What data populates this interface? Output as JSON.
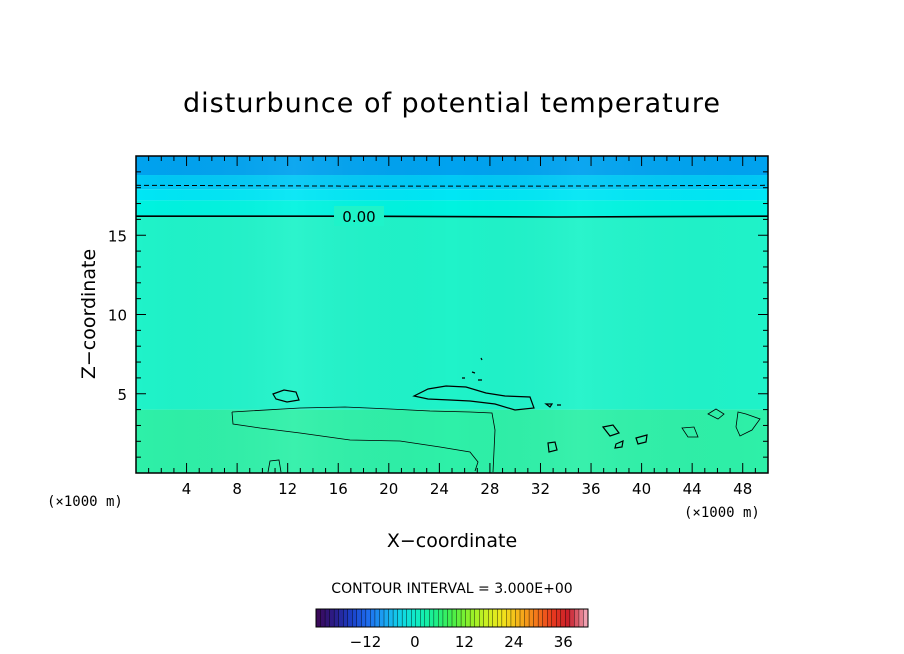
{
  "chart_data": {
    "type": "heatmap",
    "title": "disturbunce of potential temperature",
    "xlabel": "X−coordinate",
    "ylabel": "Z−coordinate",
    "x_unit": "(×1000 m)",
    "y_unit": "(×1000 m)",
    "xlim": [
      0,
      50
    ],
    "ylim": [
      0,
      20
    ],
    "x_ticks": [
      4,
      8,
      12,
      16,
      20,
      24,
      28,
      32,
      36,
      40,
      44,
      48
    ],
    "y_ticks": [
      5,
      10,
      15
    ],
    "contour_interval_text": "CONTOUR INTERVAL = 3.000E+00",
    "contour_interval": 3.0,
    "contour_labels": [
      {
        "text": "0.00",
        "value": 0.0,
        "z": 16.1
      }
    ],
    "zero_contour_z": [
      16.2,
      16.2,
      16.15,
      16.2
    ],
    "negative_contour_z": [
      18.15,
      18.1,
      18.1,
      18.15
    ],
    "color_bands_z": [
      {
        "from": 0,
        "to": 4,
        "value": 0.6,
        "color": "#2ef0a8"
      },
      {
        "from": 4,
        "to": 16.2,
        "value": 0.5,
        "color": "#1ff3c9"
      },
      {
        "from": 16.2,
        "to": 17.2,
        "value": 0.0,
        "color": "#00f3e0"
      },
      {
        "from": 17.2,
        "to": 17.9,
        "value": -1.0,
        "color": "#00e6f5"
      },
      {
        "from": 17.9,
        "to": 18.8,
        "value": -2.0,
        "color": "#00c8f5"
      },
      {
        "from": 18.8,
        "to": 20,
        "value": -3.0,
        "color": "#00a2ef"
      }
    ],
    "colorbar": {
      "ticks": [
        "−12",
        "0",
        "12",
        "24",
        "36"
      ],
      "tick_values": [
        -12,
        0,
        12,
        24,
        36
      ],
      "range": [
        -24,
        42
      ],
      "colormap": [
        "#3a0a5a",
        "#2a1e8c",
        "#1a40c8",
        "#1e6ef0",
        "#1aa6f2",
        "#10d8e6",
        "#10eec0",
        "#1cef8a",
        "#46ef4a",
        "#8cf02a",
        "#c8f022",
        "#f0e61c",
        "#f5b41a",
        "#f57a1a",
        "#e83a1e",
        "#c81e2a",
        "#f0a0b0"
      ]
    },
    "grid": false
  }
}
